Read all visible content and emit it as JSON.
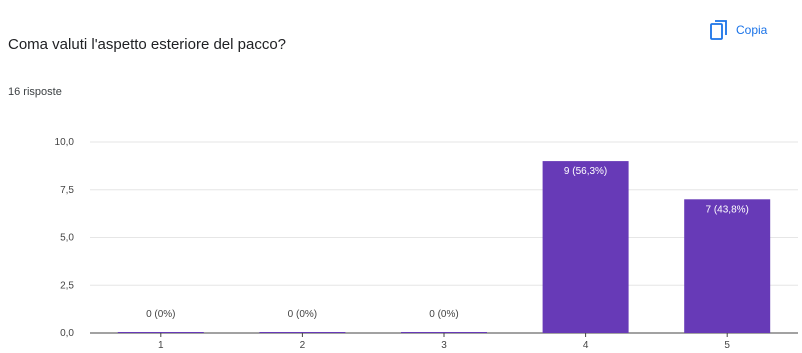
{
  "header": {
    "question": "Coma valuti l'aspetto esteriore del pacco?",
    "responses": "16 risposte",
    "copy_label": "Copia",
    "copy_icon": "copy-icon",
    "accent_color": "#1a73e8"
  },
  "chart_data": {
    "type": "bar",
    "categories": [
      "1",
      "2",
      "3",
      "4",
      "5"
    ],
    "values": [
      0,
      0,
      0,
      9,
      7
    ],
    "data_labels": [
      "0 (0%)",
      "0 (0%)",
      "0 (0%)",
      "9 (56,3%)",
      "7 (43,8%)"
    ],
    "y_ticks": [
      "0,0",
      "2,5",
      "5,0",
      "7,5",
      "10,0"
    ],
    "y_tick_values": [
      0,
      2.5,
      5,
      7.5,
      10
    ],
    "ylim": [
      0,
      10
    ],
    "grid": true,
    "bar_color": "#673ab7",
    "title": "",
    "xlabel": "",
    "ylabel": ""
  }
}
